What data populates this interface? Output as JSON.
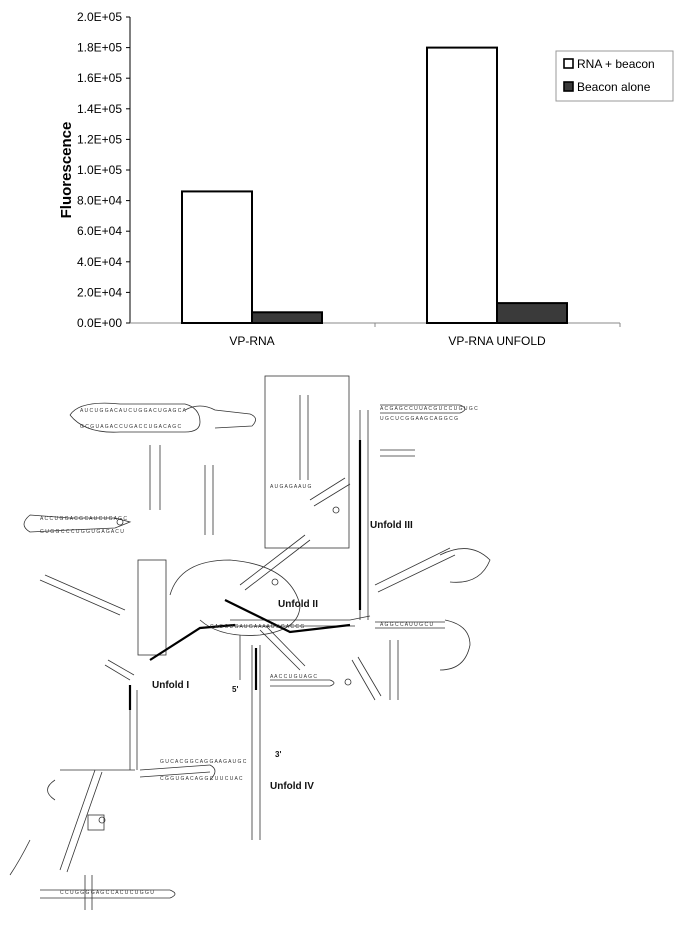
{
  "chart_data": {
    "type": "bar",
    "categories": [
      "VP-RNA",
      "VP-RNA UNFOLD"
    ],
    "series": [
      {
        "name": "RNA + beacon",
        "values": [
          86000,
          180000
        ],
        "color": "#ffffff"
      },
      {
        "name": "Beacon alone",
        "values": [
          7000,
          13000
        ],
        "color": "#3a3a3a"
      }
    ],
    "ylabel": "Fluorescence",
    "ylim": [
      0,
      200000
    ],
    "yticks": [
      "0.0E+00",
      "2.0E+04",
      "4.0E+04",
      "6.0E+04",
      "8.0E+04",
      "1.0E+05",
      "1.2E+05",
      "1.4E+05",
      "1.6E+05",
      "1.8E+05",
      "2.0E+05"
    ],
    "legend_position": "top-right",
    "grid": false
  },
  "diagram": {
    "labels": {
      "unfold1": "Unfold  I",
      "unfold2": "Unfold  II",
      "unfold3": "Unfold  III",
      "unfold4": "Unfold  IV",
      "five_prime": "5'",
      "three_prime": "3'"
    }
  }
}
